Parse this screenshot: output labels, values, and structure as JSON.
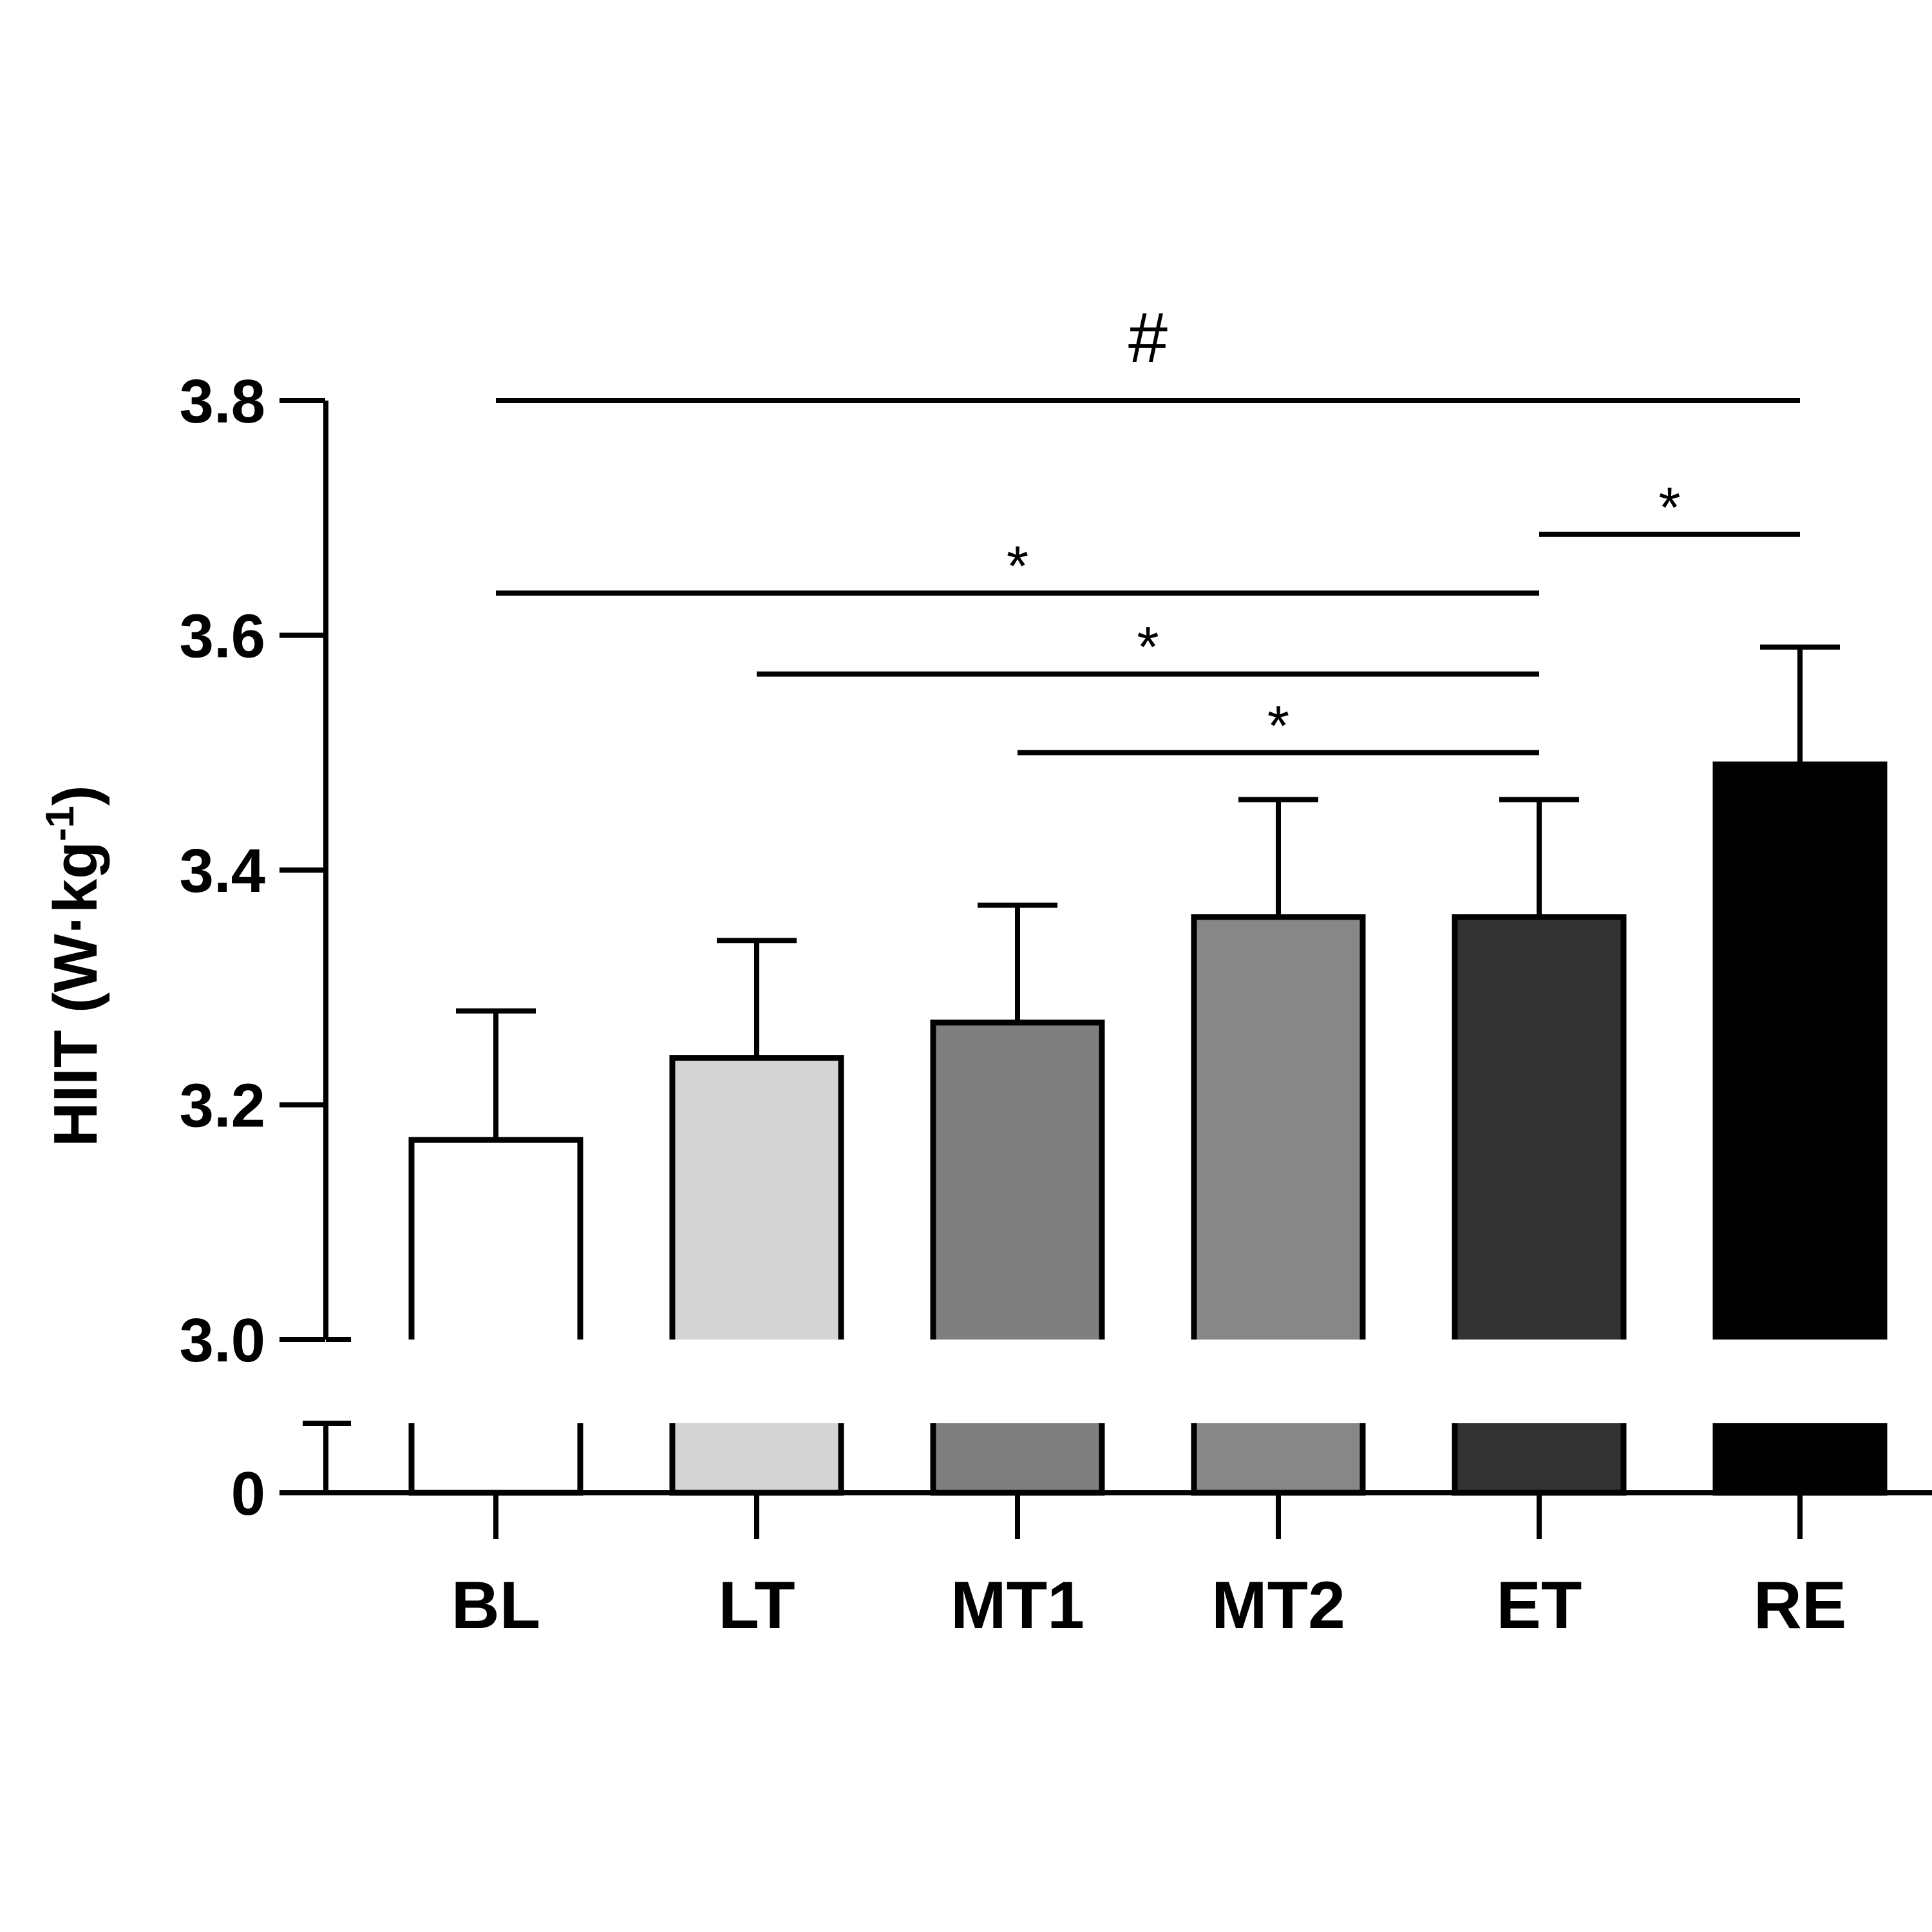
{
  "chart_data": {
    "type": "bar",
    "ylabel_main": "HIIT (W·kg",
    "ylabel_sup": "-1",
    "ylabel_close": ")",
    "categories": [
      "BL",
      "LT",
      "MT1",
      "MT2",
      "ET",
      "RE"
    ],
    "values": [
      3.17,
      3.24,
      3.27,
      3.36,
      3.36,
      3.49
    ],
    "errors": [
      0.11,
      0.1,
      0.1,
      0.1,
      0.1,
      0.1
    ],
    "fills": [
      "#ffffff",
      "#d4d4d4",
      "#7f7f7f",
      "#878787",
      "#333333",
      "#000000"
    ],
    "ylim": [
      3.0,
      3.8
    ],
    "yticks": [
      "3.0",
      "3.2",
      "3.4",
      "3.6",
      "3.8"
    ],
    "broken_axis_label": "0",
    "grid": false,
    "significance": [
      {
        "from": "BL",
        "to": "RE",
        "label": "#",
        "y": 3.8
      },
      {
        "from": "ET",
        "to": "RE",
        "label": "*",
        "y": 3.686
      },
      {
        "from": "BL",
        "to": "ET",
        "label": "*",
        "y": 3.636
      },
      {
        "from": "LT",
        "to": "ET",
        "label": "*",
        "y": 3.567
      },
      {
        "from": "MT1",
        "to": "ET",
        "label": "*",
        "y": 3.5
      }
    ]
  }
}
